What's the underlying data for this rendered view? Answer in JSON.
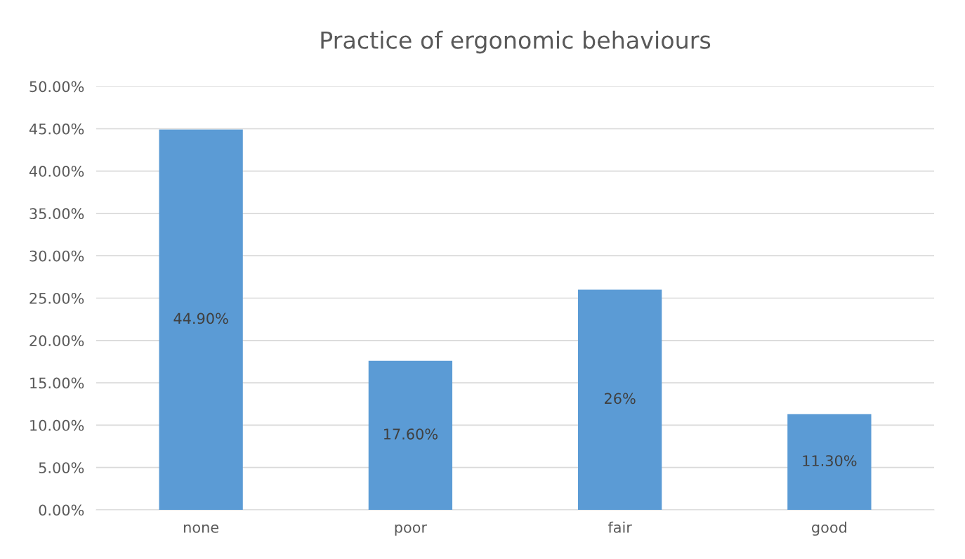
{
  "chart_data": {
    "type": "bar",
    "title": "Practice of ergonomic behaviours",
    "categories": [
      "none",
      "poor",
      "fair",
      "good"
    ],
    "values": [
      44.9,
      17.6,
      26,
      11.3
    ],
    "value_labels": [
      "44.90%",
      "17.60%",
      "26%",
      "11.30%"
    ],
    "color": "#5b9bd5",
    "ylim": [
      0,
      50
    ],
    "yticks": [
      {
        "value": 0,
        "label": "0.00%"
      },
      {
        "value": 5,
        "label": "5.00%"
      },
      {
        "value": 10,
        "label": "10.00%"
      },
      {
        "value": 15,
        "label": "15.00%"
      },
      {
        "value": 20,
        "label": "20.00%"
      },
      {
        "value": 25,
        "label": "25.00%"
      },
      {
        "value": 30,
        "label": "30.00%"
      },
      {
        "value": 35,
        "label": "35.00%"
      },
      {
        "value": 40,
        "label": "40.00%"
      },
      {
        "value": 45,
        "label": "45.00%"
      },
      {
        "value": 50,
        "label": "50.00%"
      }
    ],
    "grid": "y",
    "legend": false
  }
}
